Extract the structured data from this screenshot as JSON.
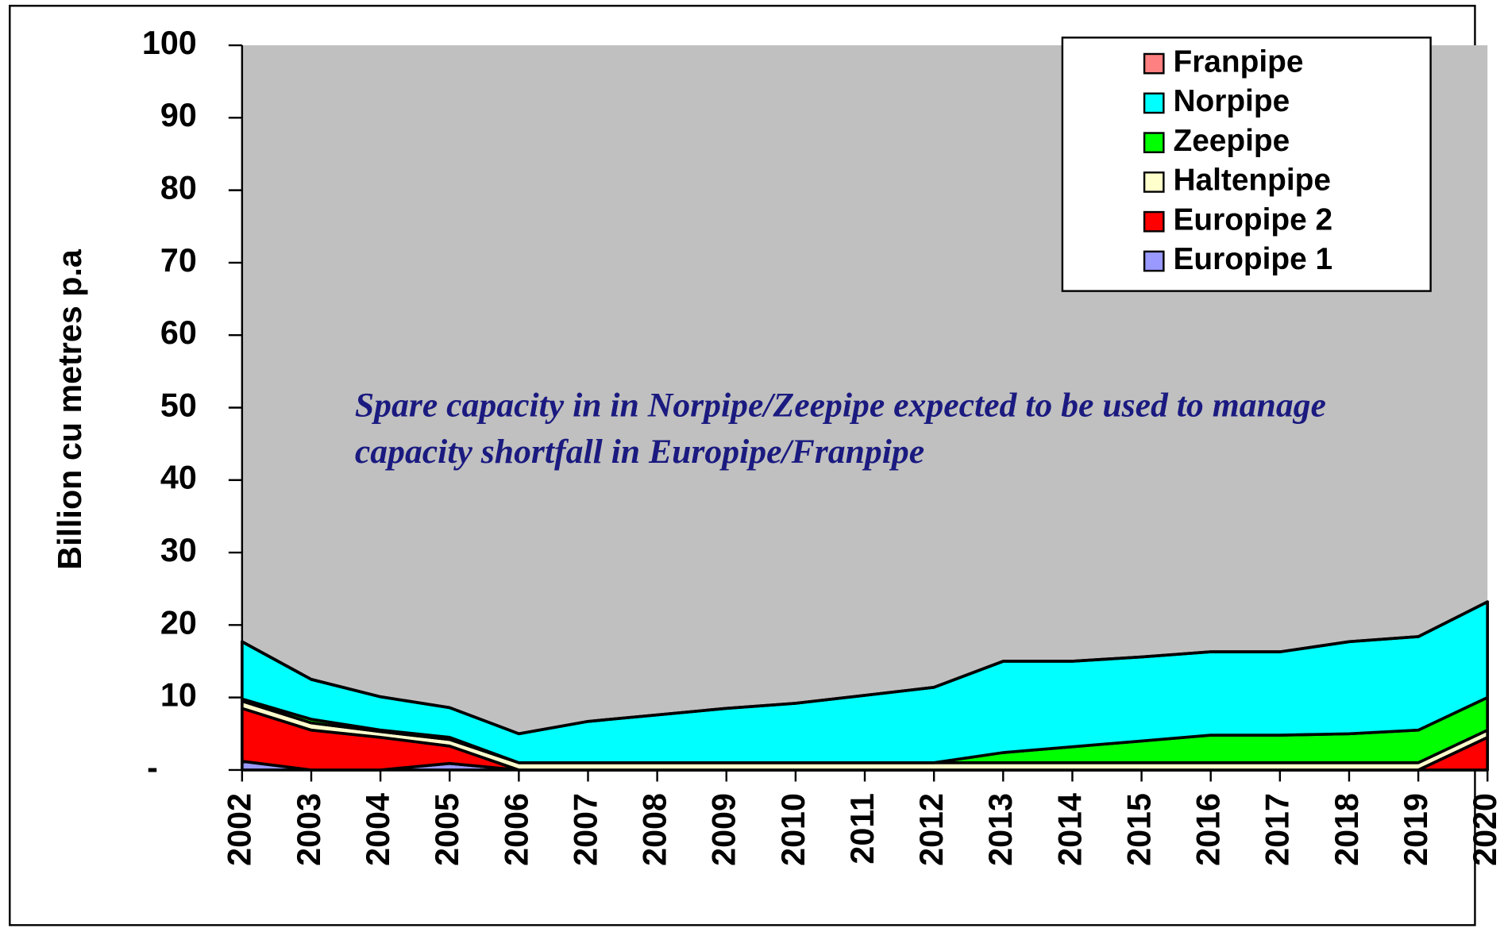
{
  "chart_data": {
    "type": "stacked_area",
    "y_label": "Billion cu metres p.a",
    "annotation": "Spare capacity in in Norpipe/Zeepipe expected to be used to manage capacity shortfall in Europipe/Franpipe",
    "categories": [
      "2002",
      "2003",
      "2004",
      "2005",
      "2006",
      "2007",
      "2008",
      "2009",
      "2010",
      "2011",
      "2012",
      "2013",
      "2014",
      "2015",
      "2016",
      "2017",
      "2018",
      "2019",
      "2020"
    ],
    "series": [
      {
        "name": "Europipe 1",
        "color": "#9999ff",
        "values": [
          1.2,
          0,
          0,
          0.9,
          0,
          0,
          0,
          0,
          0,
          0,
          0,
          0,
          0,
          0,
          0,
          0,
          0,
          0,
          0
        ]
      },
      {
        "name": "Europipe 2",
        "color": "#ff0000",
        "values": [
          7.3,
          5.5,
          4.5,
          2.4,
          0,
          0,
          0,
          0,
          0,
          0,
          0,
          0,
          0,
          0,
          0,
          0,
          0,
          0,
          4.5
        ]
      },
      {
        "name": "Haltenpipe",
        "color": "#ffffcc",
        "values": [
          1,
          1,
          0.8,
          0.9,
          1,
          1,
          1,
          1,
          1,
          1,
          1,
          1,
          1,
          1,
          1,
          1,
          1,
          1,
          1
        ]
      },
      {
        "name": "Zeepipe",
        "color": "#00ff00",
        "values": [
          0.3,
          0.5,
          0.2,
          0.3,
          0,
          0,
          0,
          0,
          0,
          0,
          0,
          1.4,
          2.2,
          3,
          3.8,
          3.8,
          4,
          4.5,
          4.5
        ]
      },
      {
        "name": "Norpipe",
        "color": "#00ffff",
        "values": [
          7.9,
          5.5,
          4.6,
          4.1,
          4,
          5.7,
          6.6,
          7.5,
          8.2,
          9.3,
          10.4,
          12.6,
          11.8,
          11.6,
          11.5,
          11.5,
          12.7,
          12.9,
          13.2
        ]
      },
      {
        "name": "Franpipe",
        "color": "#ff8080",
        "values": [
          0,
          0,
          0,
          0,
          0,
          0,
          0,
          0,
          0,
          0,
          0,
          0,
          0,
          0,
          0,
          0,
          0,
          0,
          0
        ]
      }
    ],
    "ylim": [
      0,
      100
    ],
    "yticks": [
      {
        "value": 0,
        "label": "-"
      },
      10,
      20,
      30,
      40,
      50,
      60,
      70,
      80,
      90,
      100
    ],
    "plot_background": "#c0c0c0",
    "legend": "upper right"
  }
}
